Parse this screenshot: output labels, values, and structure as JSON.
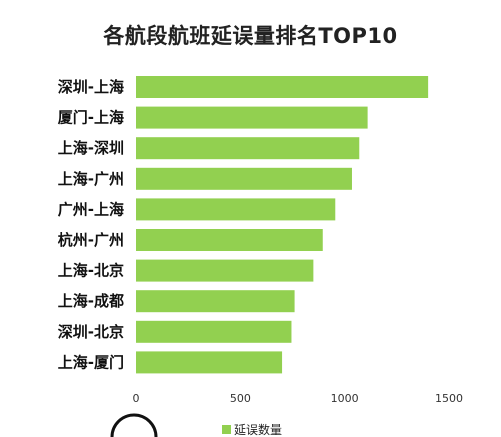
{
  "chart_data": {
    "type": "bar",
    "orientation": "horizontal",
    "title": "各航段航班延误量排名TOP10",
    "categories": [
      "深圳-上海",
      "厦门-上海",
      "上海-深圳",
      "上海-广州",
      "广州-上海",
      "杭州-广州",
      "上海-北京",
      "上海-成都",
      "深圳-北京",
      "上海-厦门"
    ],
    "series": [
      {
        "name": "延误数量",
        "color": "#92d050",
        "values": [
          1400,
          1110,
          1070,
          1035,
          955,
          895,
          850,
          760,
          745,
          700
        ]
      }
    ],
    "xlim": [
      0,
      1500
    ],
    "xticks": [
      0,
      500,
      1000,
      1500
    ],
    "grid": false,
    "legend_position": "bottom"
  }
}
